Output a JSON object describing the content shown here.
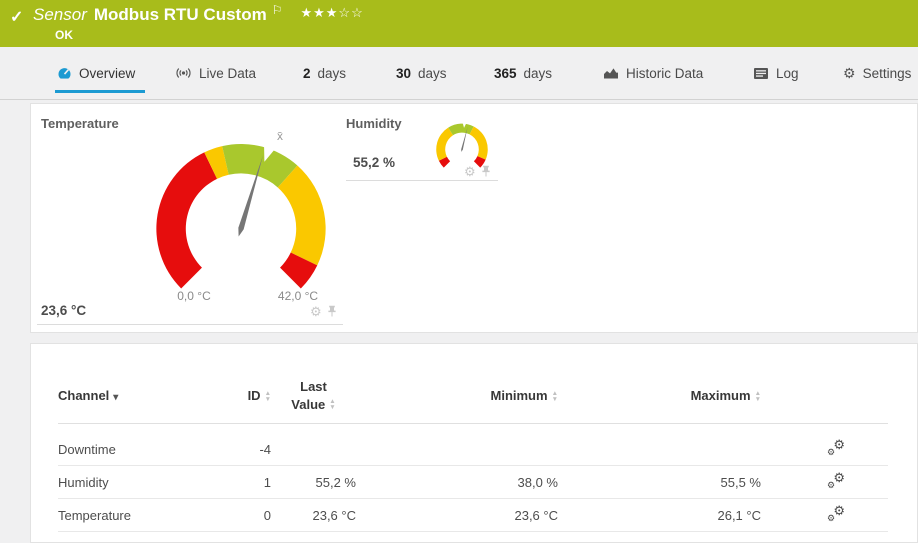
{
  "header": {
    "check": "✓",
    "kind": "Sensor",
    "title": "Modbus RTU Custom",
    "flag_icon": "⚐",
    "stars": "★★★☆☆",
    "status": "OK",
    "bg_color": "#a8bc1b"
  },
  "tabs": [
    {
      "label": "Overview",
      "icon": "gauge-icon",
      "active": true
    },
    {
      "label": "Live Data",
      "icon": "broadcast-icon"
    },
    {
      "num": "2",
      "label": "days"
    },
    {
      "num": "30",
      "label": "days"
    },
    {
      "num": "365",
      "label": "days"
    },
    {
      "label": "Historic Data",
      "icon": "area-chart-icon"
    },
    {
      "label": "Log",
      "icon": "log-icon"
    },
    {
      "label": "Settings",
      "icon": "gear-icon"
    }
  ],
  "colors": {
    "accent_blue": "#1b9ad2",
    "gauge_red": "#e60d0d",
    "gauge_yellow": "#fac800",
    "gauge_green": "#a9c82d",
    "needle_gray": "#767676"
  },
  "chart_data": [
    {
      "type": "gauge",
      "title": "Temperature",
      "value": 23.6,
      "value_label": "23,6 °C",
      "min": 0,
      "max": 42,
      "min_label": "0,0 °C",
      "max_label": "42,0 °C",
      "arc_degrees": 270,
      "average_marker_value": 24.0,
      "average_marker_label": "x̄",
      "segments": [
        {
          "from": 0,
          "to": 17,
          "color": "#e60d0d"
        },
        {
          "from": 17,
          "to": 19,
          "color": "#fac800"
        },
        {
          "from": 19,
          "to": 27.5,
          "color": "#a9c82d"
        },
        {
          "from": 27.5,
          "to": 39,
          "color": "#fac800"
        },
        {
          "from": 39,
          "to": 42,
          "color": "#e60d0d"
        }
      ]
    },
    {
      "type": "gauge",
      "title": "Humidity",
      "value": 55.2,
      "value_label": "55,2 %",
      "min": 0,
      "max": 100,
      "arc_degrees": 270,
      "average_marker_value": 52,
      "segments": [
        {
          "from": 0,
          "to": 7,
          "color": "#e60d0d"
        },
        {
          "from": 7,
          "to": 38,
          "color": "#fac800"
        },
        {
          "from": 38,
          "to": 60,
          "color": "#a9c82d"
        },
        {
          "from": 60,
          "to": 92,
          "color": "#fac800"
        },
        {
          "from": 92,
          "to": 100,
          "color": "#e60d0d"
        }
      ]
    }
  ],
  "table": {
    "columns": [
      {
        "label": "Channel",
        "sort": "desc"
      },
      {
        "label": "ID",
        "sort": "both"
      },
      {
        "label": "Last Value",
        "line1": "Last",
        "line2": "Value",
        "sort": "both"
      },
      {
        "label": "Minimum",
        "sort": "both"
      },
      {
        "label": "Maximum",
        "sort": "both"
      }
    ],
    "rows": [
      {
        "channel": "Downtime",
        "id": "-4",
        "last": "",
        "min": "",
        "max": ""
      },
      {
        "channel": "Humidity",
        "id": "1",
        "last": "55,2 %",
        "min": "38,0 %",
        "max": "55,5 %"
      },
      {
        "channel": "Temperature",
        "id": "0",
        "last": "23,6 °C",
        "min": "23,6 °C",
        "max": "26,1 °C"
      }
    ]
  }
}
